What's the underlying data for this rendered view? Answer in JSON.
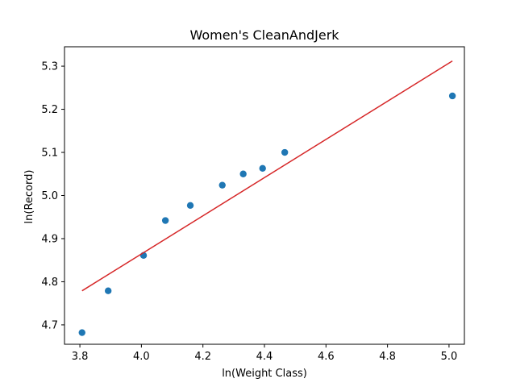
{
  "chart_data": {
    "type": "scatter",
    "title": "Women's CleanAndJerk",
    "xlabel": "ln(Weight Class)",
    "ylabel": "ln(Record)",
    "xlim": [
      3.75,
      5.05
    ],
    "ylim": [
      4.655,
      5.345
    ],
    "x_ticks": [
      3.8,
      4.0,
      4.2,
      4.4,
      4.6,
      4.8,
      5.0
    ],
    "x_tick_labels": [
      "3.8",
      "4.0",
      "4.2",
      "4.4",
      "4.6",
      "4.8",
      "5.0"
    ],
    "y_ticks": [
      4.7,
      4.8,
      4.9,
      5.0,
      5.1,
      5.2,
      5.3
    ],
    "y_tick_labels": [
      "4.7",
      "4.8",
      "4.9",
      "5.0",
      "5.1",
      "5.2",
      "5.3"
    ],
    "grid": false,
    "legend": "none",
    "series": [
      {
        "kind": "scatter",
        "color": "#1f77b4",
        "points": [
          {
            "x": 3.807,
            "y": 4.682
          },
          {
            "x": 3.892,
            "y": 4.779
          },
          {
            "x": 4.007,
            "y": 4.861
          },
          {
            "x": 4.078,
            "y": 4.942
          },
          {
            "x": 4.159,
            "y": 4.977
          },
          {
            "x": 4.263,
            "y": 5.024
          },
          {
            "x": 4.331,
            "y": 5.05
          },
          {
            "x": 4.394,
            "y": 5.063
          },
          {
            "x": 4.466,
            "y": 5.1
          },
          {
            "x": 5.011,
            "y": 5.231
          }
        ]
      },
      {
        "kind": "line",
        "color": "#d62728",
        "points": [
          {
            "x": 3.807,
            "y": 4.779
          },
          {
            "x": 5.011,
            "y": 5.312
          }
        ]
      }
    ]
  }
}
